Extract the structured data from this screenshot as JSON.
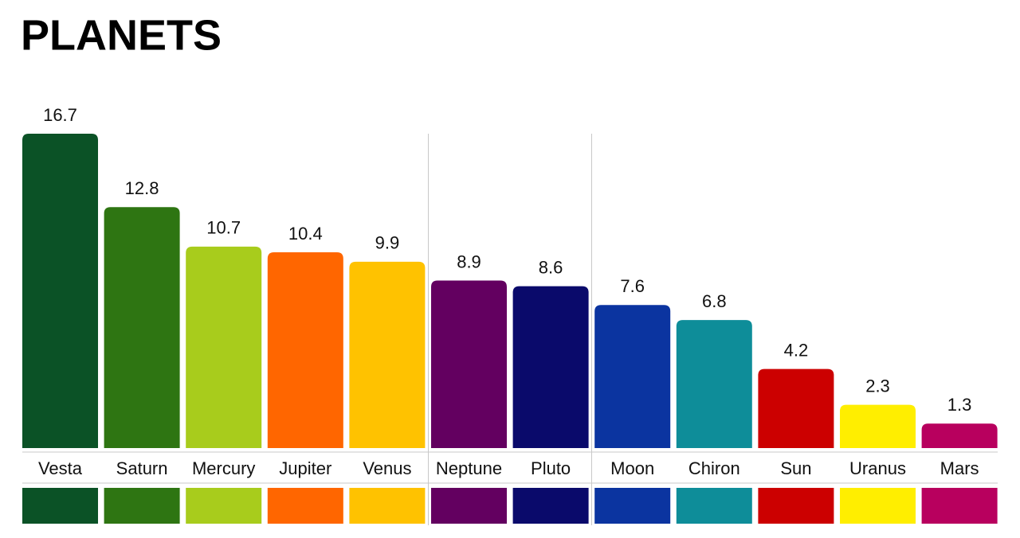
{
  "chart_data": {
    "type": "bar",
    "title": "PLANETS",
    "categories": [
      "Vesta",
      "Saturn",
      "Mercury",
      "Jupiter",
      "Venus",
      "Neptune",
      "Pluto",
      "Moon",
      "Chiron",
      "Sun",
      "Uranus",
      "Mars"
    ],
    "values": [
      16.7,
      12.8,
      10.7,
      10.4,
      9.9,
      8.9,
      8.6,
      7.6,
      6.8,
      4.2,
      2.3,
      1.3
    ],
    "colors": [
      "#0b5226",
      "#2e7512",
      "#a8cc1c",
      "#ff6600",
      "#ffc200",
      "#630060",
      "#0a0a6b",
      "#0b34a0",
      "#0e8d99",
      "#cc0000",
      "#ffee00",
      "#b8005e"
    ]
  }
}
